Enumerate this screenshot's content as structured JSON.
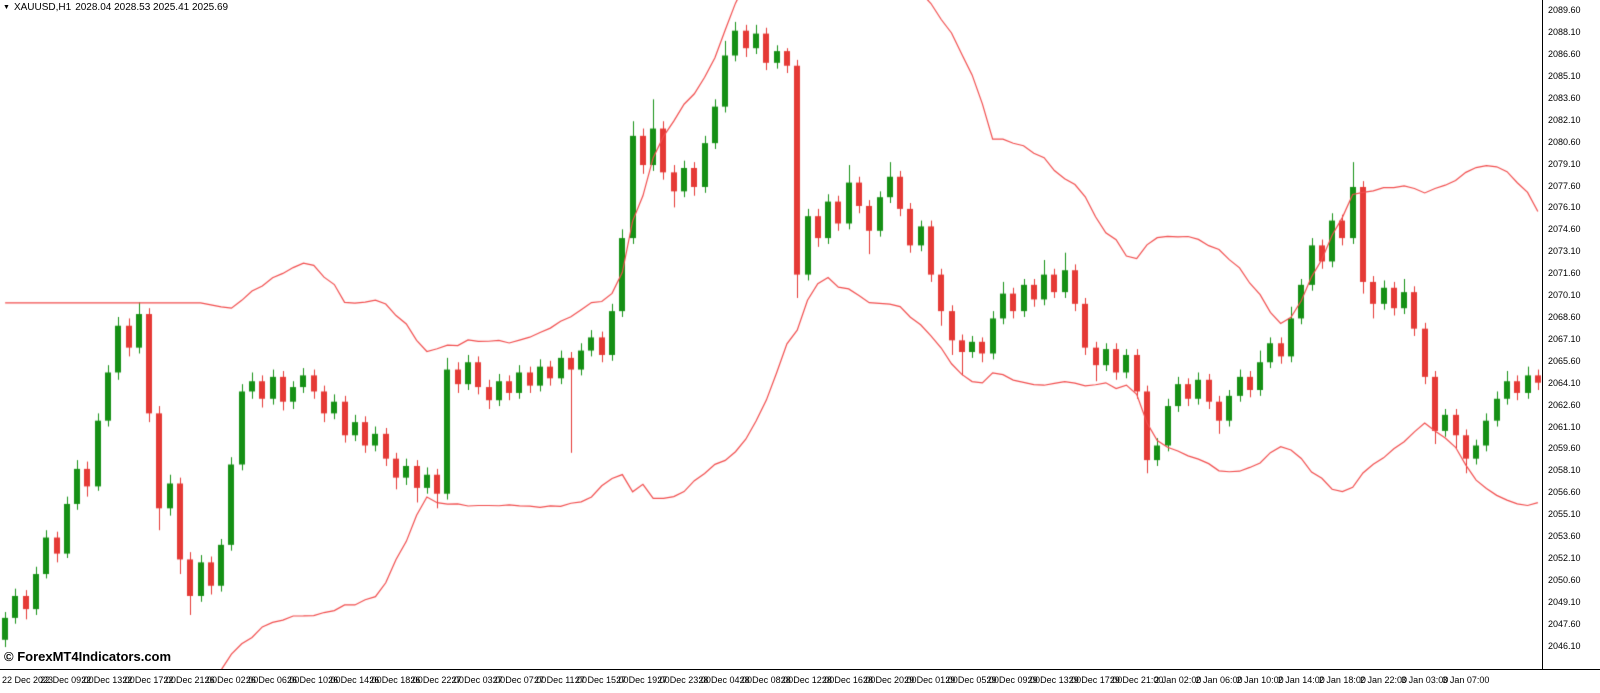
{
  "header": {
    "marker": "▼",
    "symbol_period": "XAUUSD,H1",
    "ohlc": "2028.04 2028.53 2025.41 2025.69"
  },
  "watermark": "© ForexMT4Indicators.com",
  "colors": {
    "background": "#ffffff",
    "text": "#000000",
    "up": "#159015",
    "down": "#e53935",
    "band": "#f14c4c",
    "axis_line": "#000000"
  },
  "chart_data": {
    "type": "candlestick",
    "title": "XAUUSD,H1 2028.04 2028.53 2025.41 2025.69",
    "symbol": "XAUUSD",
    "timeframe": "H1",
    "grid": false,
    "legend": "none",
    "indicator": {
      "name": "Bollinger Bands",
      "period": 20,
      "deviation": 2,
      "lines": [
        "upper",
        "lower"
      ]
    },
    "y_axis": {
      "min": 2044.5,
      "max": 2090.3,
      "step": 1.5,
      "ticks": [
        "2089.60",
        "2088.10",
        "2086.60",
        "2085.10",
        "2083.60",
        "2082.10",
        "2080.60",
        "2079.10",
        "2077.60",
        "2076.10",
        "2074.60",
        "2073.10",
        "2071.60",
        "2070.10",
        "2068.60",
        "2067.10",
        "2065.60",
        "2064.10",
        "2062.60",
        "2061.10",
        "2059.60",
        "2058.10",
        "2056.60",
        "2055.10",
        "2053.60",
        "2052.10",
        "2050.60",
        "2049.10",
        "2047.60",
        "2046.10"
      ]
    },
    "x_axis": {
      "first_label_index": 2,
      "label_every": 4,
      "labels": [
        "22 Dec 2023",
        "22 Dec 09:00",
        "22 Dec 13:00",
        "22 Dec 17:00",
        "22 Dec 21:00",
        "26 Dec 02:00",
        "26 Dec 06:00",
        "26 Dec 10:00",
        "26 Dec 14:00",
        "26 Dec 18:00",
        "26 Dec 22:00",
        "27 Dec 03:00",
        "27 Dec 07:00",
        "27 Dec 11:00",
        "27 Dec 15:00",
        "27 Dec 19:00",
        "27 Dec 23:00",
        "28 Dec 04:00",
        "28 Dec 08:00",
        "28 Dec 12:00",
        "28 Dec 16:00",
        "28 Dec 20:00",
        "29 Dec 01:00",
        "29 Dec 05:00",
        "29 Dec 09:00",
        "29 Dec 13:00",
        "29 Dec 17:00",
        "29 Dec 21:00",
        "2 Jan 02:00",
        "2 Jan 06:00",
        "2 Jan 10:00",
        "2 Jan 14:00",
        "2 Jan 18:00",
        "2 Jan 22:00",
        "3 Jan 03:00",
        "3 Jan 07:00"
      ]
    },
    "candles": [
      [
        2046.5,
        2048.4,
        2046.0,
        2048.0
      ],
      [
        2048.0,
        2050.0,
        2047.6,
        2049.5
      ],
      [
        2049.5,
        2049.9,
        2047.9,
        2048.6
      ],
      [
        2048.6,
        2051.5,
        2048.2,
        2051.0
      ],
      [
        2051.0,
        2054.0,
        2050.7,
        2053.5
      ],
      [
        2053.5,
        2053.9,
        2051.8,
        2052.4
      ],
      [
        2052.4,
        2056.3,
        2052.1,
        2055.8
      ],
      [
        2055.8,
        2058.8,
        2055.4,
        2058.2
      ],
      [
        2058.2,
        2058.7,
        2056.3,
        2057.0
      ],
      [
        2057.0,
        2062.0,
        2056.7,
        2061.5
      ],
      [
        2061.5,
        2065.3,
        2061.1,
        2064.8
      ],
      [
        2064.8,
        2068.6,
        2064.3,
        2068.0
      ],
      [
        2068.0,
        2068.5,
        2065.9,
        2066.5
      ],
      [
        2066.5,
        2069.6,
        2066.1,
        2068.8
      ],
      [
        2068.8,
        2069.2,
        2061.4,
        2062.0
      ],
      [
        2062.0,
        2062.5,
        2054.0,
        2055.5
      ],
      [
        2055.5,
        2057.8,
        2055.0,
        2057.2
      ],
      [
        2057.2,
        2057.6,
        2051.0,
        2052.0
      ],
      [
        2052.0,
        2052.5,
        2048.2,
        2049.5
      ],
      [
        2049.5,
        2052.3,
        2049.1,
        2051.8
      ],
      [
        2051.8,
        2052.2,
        2049.6,
        2050.2
      ],
      [
        2050.2,
        2053.4,
        2049.8,
        2053.0
      ],
      [
        2053.0,
        2059.0,
        2052.6,
        2058.5
      ],
      [
        2058.5,
        2064.0,
        2058.1,
        2063.5
      ],
      [
        2063.5,
        2064.8,
        2063.0,
        2064.2
      ],
      [
        2064.2,
        2064.6,
        2062.4,
        2063.0
      ],
      [
        2063.0,
        2065.0,
        2062.6,
        2064.5
      ],
      [
        2064.5,
        2064.9,
        2062.2,
        2062.8
      ],
      [
        2062.8,
        2064.2,
        2062.3,
        2063.8
      ],
      [
        2063.8,
        2065.1,
        2063.4,
        2064.6
      ],
      [
        2064.6,
        2065.0,
        2063.0,
        2063.5
      ],
      [
        2063.5,
        2063.9,
        2061.4,
        2062.0
      ],
      [
        2062.0,
        2063.3,
        2061.6,
        2062.8
      ],
      [
        2062.8,
        2063.2,
        2060.0,
        2060.5
      ],
      [
        2060.5,
        2061.9,
        2060.1,
        2061.4
      ],
      [
        2061.4,
        2061.8,
        2059.3,
        2059.8
      ],
      [
        2059.8,
        2061.1,
        2059.4,
        2060.6
      ],
      [
        2060.6,
        2061.0,
        2058.4,
        2058.9
      ],
      [
        2058.9,
        2059.3,
        2056.8,
        2057.6
      ],
      [
        2057.6,
        2058.9,
        2057.1,
        2058.4
      ],
      [
        2058.4,
        2058.8,
        2055.9,
        2056.9
      ],
      [
        2056.9,
        2058.3,
        2056.5,
        2057.8
      ],
      [
        2057.8,
        2058.2,
        2055.5,
        2056.5
      ],
      [
        2056.5,
        2065.8,
        2056.1,
        2065.0
      ],
      [
        2065.0,
        2065.5,
        2063.4,
        2064.0
      ],
      [
        2064.0,
        2066.0,
        2063.6,
        2065.5
      ],
      [
        2065.5,
        2065.9,
        2063.3,
        2063.8
      ],
      [
        2063.8,
        2064.3,
        2062.3,
        2062.9
      ],
      [
        2062.9,
        2064.7,
        2062.5,
        2064.2
      ],
      [
        2064.2,
        2064.6,
        2062.9,
        2063.4
      ],
      [
        2063.4,
        2065.3,
        2063.0,
        2064.8
      ],
      [
        2064.8,
        2065.2,
        2063.4,
        2063.9
      ],
      [
        2063.9,
        2065.7,
        2063.5,
        2065.2
      ],
      [
        2065.2,
        2065.6,
        2063.9,
        2064.4
      ],
      [
        2064.4,
        2066.3,
        2064.0,
        2065.8
      ],
      [
        2065.8,
        2066.2,
        2059.3,
        2065.0
      ],
      [
        2065.0,
        2066.8,
        2064.6,
        2066.3
      ],
      [
        2066.3,
        2067.7,
        2065.9,
        2067.2
      ],
      [
        2067.2,
        2067.6,
        2065.5,
        2066.0
      ],
      [
        2066.0,
        2069.5,
        2065.6,
        2069.0
      ],
      [
        2069.0,
        2074.6,
        2068.6,
        2074.0
      ],
      [
        2074.0,
        2082.0,
        2073.6,
        2081.0
      ],
      [
        2081.0,
        2081.5,
        2078.4,
        2079.0
      ],
      [
        2079.0,
        2083.5,
        2078.6,
        2081.5
      ],
      [
        2081.5,
        2082.0,
        2078.0,
        2078.5
      ],
      [
        2078.5,
        2079.0,
        2076.1,
        2077.2
      ],
      [
        2077.2,
        2079.3,
        2076.8,
        2078.8
      ],
      [
        2078.8,
        2079.2,
        2076.9,
        2077.5
      ],
      [
        2077.5,
        2081.0,
        2077.1,
        2080.5
      ],
      [
        2080.5,
        2083.5,
        2080.1,
        2083.0
      ],
      [
        2083.0,
        2087.5,
        2082.6,
        2086.5
      ],
      [
        2086.5,
        2088.8,
        2086.1,
        2088.2
      ],
      [
        2088.2,
        2088.6,
        2086.4,
        2087.0
      ],
      [
        2087.0,
        2088.6,
        2086.6,
        2088.0
      ],
      [
        2088.0,
        2088.4,
        2085.5,
        2086.0
      ],
      [
        2086.0,
        2087.2,
        2085.6,
        2086.8
      ],
      [
        2086.8,
        2087.0,
        2085.3,
        2085.8
      ],
      [
        2085.8,
        2086.2,
        2069.9,
        2071.5
      ],
      [
        2071.5,
        2076.0,
        2071.1,
        2075.5
      ],
      [
        2075.5,
        2076.0,
        2073.4,
        2074.0
      ],
      [
        2074.0,
        2077.0,
        2073.6,
        2076.5
      ],
      [
        2076.5,
        2076.9,
        2074.5,
        2075.0
      ],
      [
        2075.0,
        2079.0,
        2074.6,
        2077.8
      ],
      [
        2077.8,
        2078.2,
        2075.7,
        2076.2
      ],
      [
        2076.2,
        2076.6,
        2072.9,
        2074.5
      ],
      [
        2074.5,
        2077.2,
        2074.1,
        2076.8
      ],
      [
        2076.8,
        2079.2,
        2076.4,
        2078.2
      ],
      [
        2078.2,
        2078.6,
        2075.5,
        2076.0
      ],
      [
        2076.0,
        2076.4,
        2073.0,
        2073.5
      ],
      [
        2073.5,
        2075.2,
        2073.1,
        2074.8
      ],
      [
        2074.8,
        2075.2,
        2071.0,
        2071.5
      ],
      [
        2071.5,
        2071.9,
        2068.0,
        2069.0
      ],
      [
        2069.0,
        2069.4,
        2066.0,
        2067.0
      ],
      [
        2067.0,
        2067.4,
        2064.6,
        2066.2
      ],
      [
        2066.2,
        2067.3,
        2065.8,
        2066.9
      ],
      [
        2066.9,
        2067.2,
        2065.5,
        2066.1
      ],
      [
        2066.1,
        2069.0,
        2065.7,
        2068.5
      ],
      [
        2068.5,
        2071.0,
        2068.1,
        2070.2
      ],
      [
        2070.2,
        2070.6,
        2068.5,
        2069.0
      ],
      [
        2069.0,
        2071.2,
        2068.6,
        2070.8
      ],
      [
        2070.8,
        2071.2,
        2069.3,
        2069.8
      ],
      [
        2069.8,
        2072.5,
        2069.4,
        2071.5
      ],
      [
        2071.5,
        2071.9,
        2069.9,
        2070.3
      ],
      [
        2070.3,
        2073.0,
        2069.9,
        2071.8
      ],
      [
        2071.8,
        2072.2,
        2069.0,
        2069.5
      ],
      [
        2069.5,
        2069.9,
        2066.0,
        2066.5
      ],
      [
        2066.5,
        2066.9,
        2064.2,
        2065.3
      ],
      [
        2065.3,
        2066.8,
        2064.9,
        2066.4
      ],
      [
        2066.4,
        2066.8,
        2064.3,
        2064.8
      ],
      [
        2064.8,
        2066.4,
        2064.4,
        2066.0
      ],
      [
        2066.0,
        2066.4,
        2063.0,
        2063.5
      ],
      [
        2063.5,
        2063.9,
        2057.9,
        2058.8
      ],
      [
        2058.8,
        2060.3,
        2058.4,
        2059.8
      ],
      [
        2059.8,
        2063.0,
        2059.4,
        2062.5
      ],
      [
        2062.5,
        2064.5,
        2062.1,
        2064.0
      ],
      [
        2064.0,
        2064.4,
        2062.5,
        2063.0
      ],
      [
        2063.0,
        2064.8,
        2062.6,
        2064.3
      ],
      [
        2064.3,
        2064.7,
        2062.3,
        2062.8
      ],
      [
        2062.8,
        2063.2,
        2060.6,
        2061.5
      ],
      [
        2061.5,
        2063.6,
        2061.1,
        2063.2
      ],
      [
        2063.2,
        2065.0,
        2062.8,
        2064.5
      ],
      [
        2064.5,
        2064.9,
        2063.1,
        2063.6
      ],
      [
        2063.6,
        2066.3,
        2063.2,
        2065.5
      ],
      [
        2065.5,
        2067.2,
        2065.1,
        2066.8
      ],
      [
        2066.8,
        2067.2,
        2065.4,
        2065.9
      ],
      [
        2065.9,
        2069.3,
        2065.5,
        2068.5
      ],
      [
        2068.5,
        2071.2,
        2068.1,
        2070.8
      ],
      [
        2070.8,
        2074.0,
        2070.4,
        2073.5
      ],
      [
        2073.5,
        2073.9,
        2071.9,
        2072.4
      ],
      [
        2072.4,
        2075.7,
        2072.0,
        2075.2
      ],
      [
        2075.2,
        2075.6,
        2073.5,
        2074.0
      ],
      [
        2074.0,
        2079.2,
        2073.6,
        2077.5
      ],
      [
        2077.5,
        2077.9,
        2070.2,
        2071.0
      ],
      [
        2071.0,
        2071.4,
        2068.5,
        2069.5
      ],
      [
        2069.5,
        2071.1,
        2069.1,
        2070.6
      ],
      [
        2070.6,
        2071.0,
        2068.7,
        2069.2
      ],
      [
        2069.2,
        2071.2,
        2068.8,
        2070.3
      ],
      [
        2070.3,
        2070.7,
        2067.3,
        2067.8
      ],
      [
        2067.8,
        2068.2,
        2064.0,
        2064.5
      ],
      [
        2064.5,
        2064.9,
        2059.9,
        2060.8
      ],
      [
        2060.8,
        2062.3,
        2060.4,
        2061.9
      ],
      [
        2061.9,
        2062.3,
        2059.6,
        2060.5
      ],
      [
        2060.5,
        2060.9,
        2057.9,
        2058.9
      ],
      [
        2058.9,
        2060.2,
        2058.5,
        2059.8
      ],
      [
        2059.8,
        2062.0,
        2059.4,
        2061.5
      ],
      [
        2061.5,
        2063.5,
        2061.1,
        2063.0
      ],
      [
        2063.0,
        2064.9,
        2062.6,
        2064.2
      ],
      [
        2064.2,
        2064.6,
        2062.9,
        2063.4
      ],
      [
        2063.4,
        2065.2,
        2063.0,
        2064.6
      ],
      [
        2064.6,
        2065.0,
        2063.6,
        2064.1
      ]
    ]
  }
}
